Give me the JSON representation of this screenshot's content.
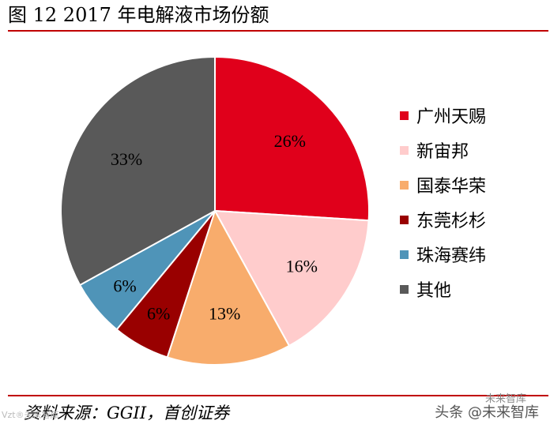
{
  "header": {
    "title": "图  12 2017 年电解液市场份额"
  },
  "footer": {
    "source": "资料来源：GGII，首创证券",
    "watermark": "头条 @未来智库",
    "watermark_top": "未来智库",
    "watermark_left": "Vzt®未来智库"
  },
  "chart_data": {
    "type": "pie",
    "title": "2017 年电解液市场份额",
    "slices": [
      {
        "name": "广州天赐",
        "value": 26,
        "label": "26%",
        "color": "#e0001b"
      },
      {
        "name": "新宙邦",
        "value": 16,
        "label": "16%",
        "color": "#ffcccc"
      },
      {
        "name": "国泰华荣",
        "value": 13,
        "label": "13%",
        "color": "#f8ac6c"
      },
      {
        "name": "东莞杉杉",
        "value": 6,
        "label": "6%",
        "color": "#990000"
      },
      {
        "name": "珠海赛纬",
        "value": 6,
        "label": "6%",
        "color": "#4f94b8"
      },
      {
        "name": "其他",
        "value": 33,
        "label": "33%",
        "color": "#595959"
      }
    ],
    "legend_position": "right"
  }
}
